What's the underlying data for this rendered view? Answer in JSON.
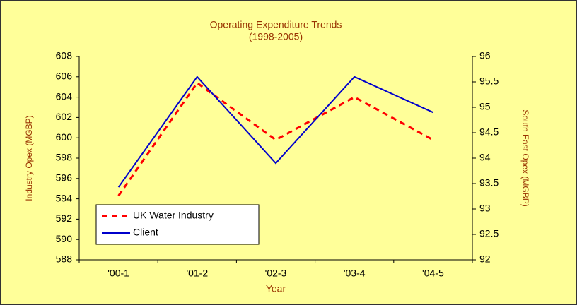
{
  "chart_data": {
    "type": "line",
    "title": "Operating Expenditure Trends",
    "subtitle": "(1998-2005)",
    "x_label": "Year",
    "y_label": "Industry Opex (MGBP)",
    "y2_label": "South East Opex (MGBP)",
    "categories": [
      "'00-1",
      "'01-2",
      "'02-3",
      "'03-4",
      "'04-5"
    ],
    "series": [
      {
        "name": "UK Water Industry",
        "color": "#ff0000",
        "dash": true,
        "values": [
          594.3,
          605.4,
          599.8,
          604.0,
          599.8
        ]
      },
      {
        "name": "Client",
        "color": "#0000cc",
        "axis": "y2",
        "values": [
          93.43,
          95.6,
          93.9,
          95.6,
          94.9
        ]
      }
    ],
    "ylim": [
      588,
      608
    ],
    "yticks": [
      588,
      590,
      592,
      594,
      596,
      598,
      600,
      602,
      604,
      606,
      608
    ],
    "y2lim": [
      92,
      96
    ],
    "y2ticks": [
      92,
      92.5,
      93,
      93.5,
      94,
      94.5,
      95,
      95.5,
      96
    ],
    "legend": "lower-left"
  }
}
